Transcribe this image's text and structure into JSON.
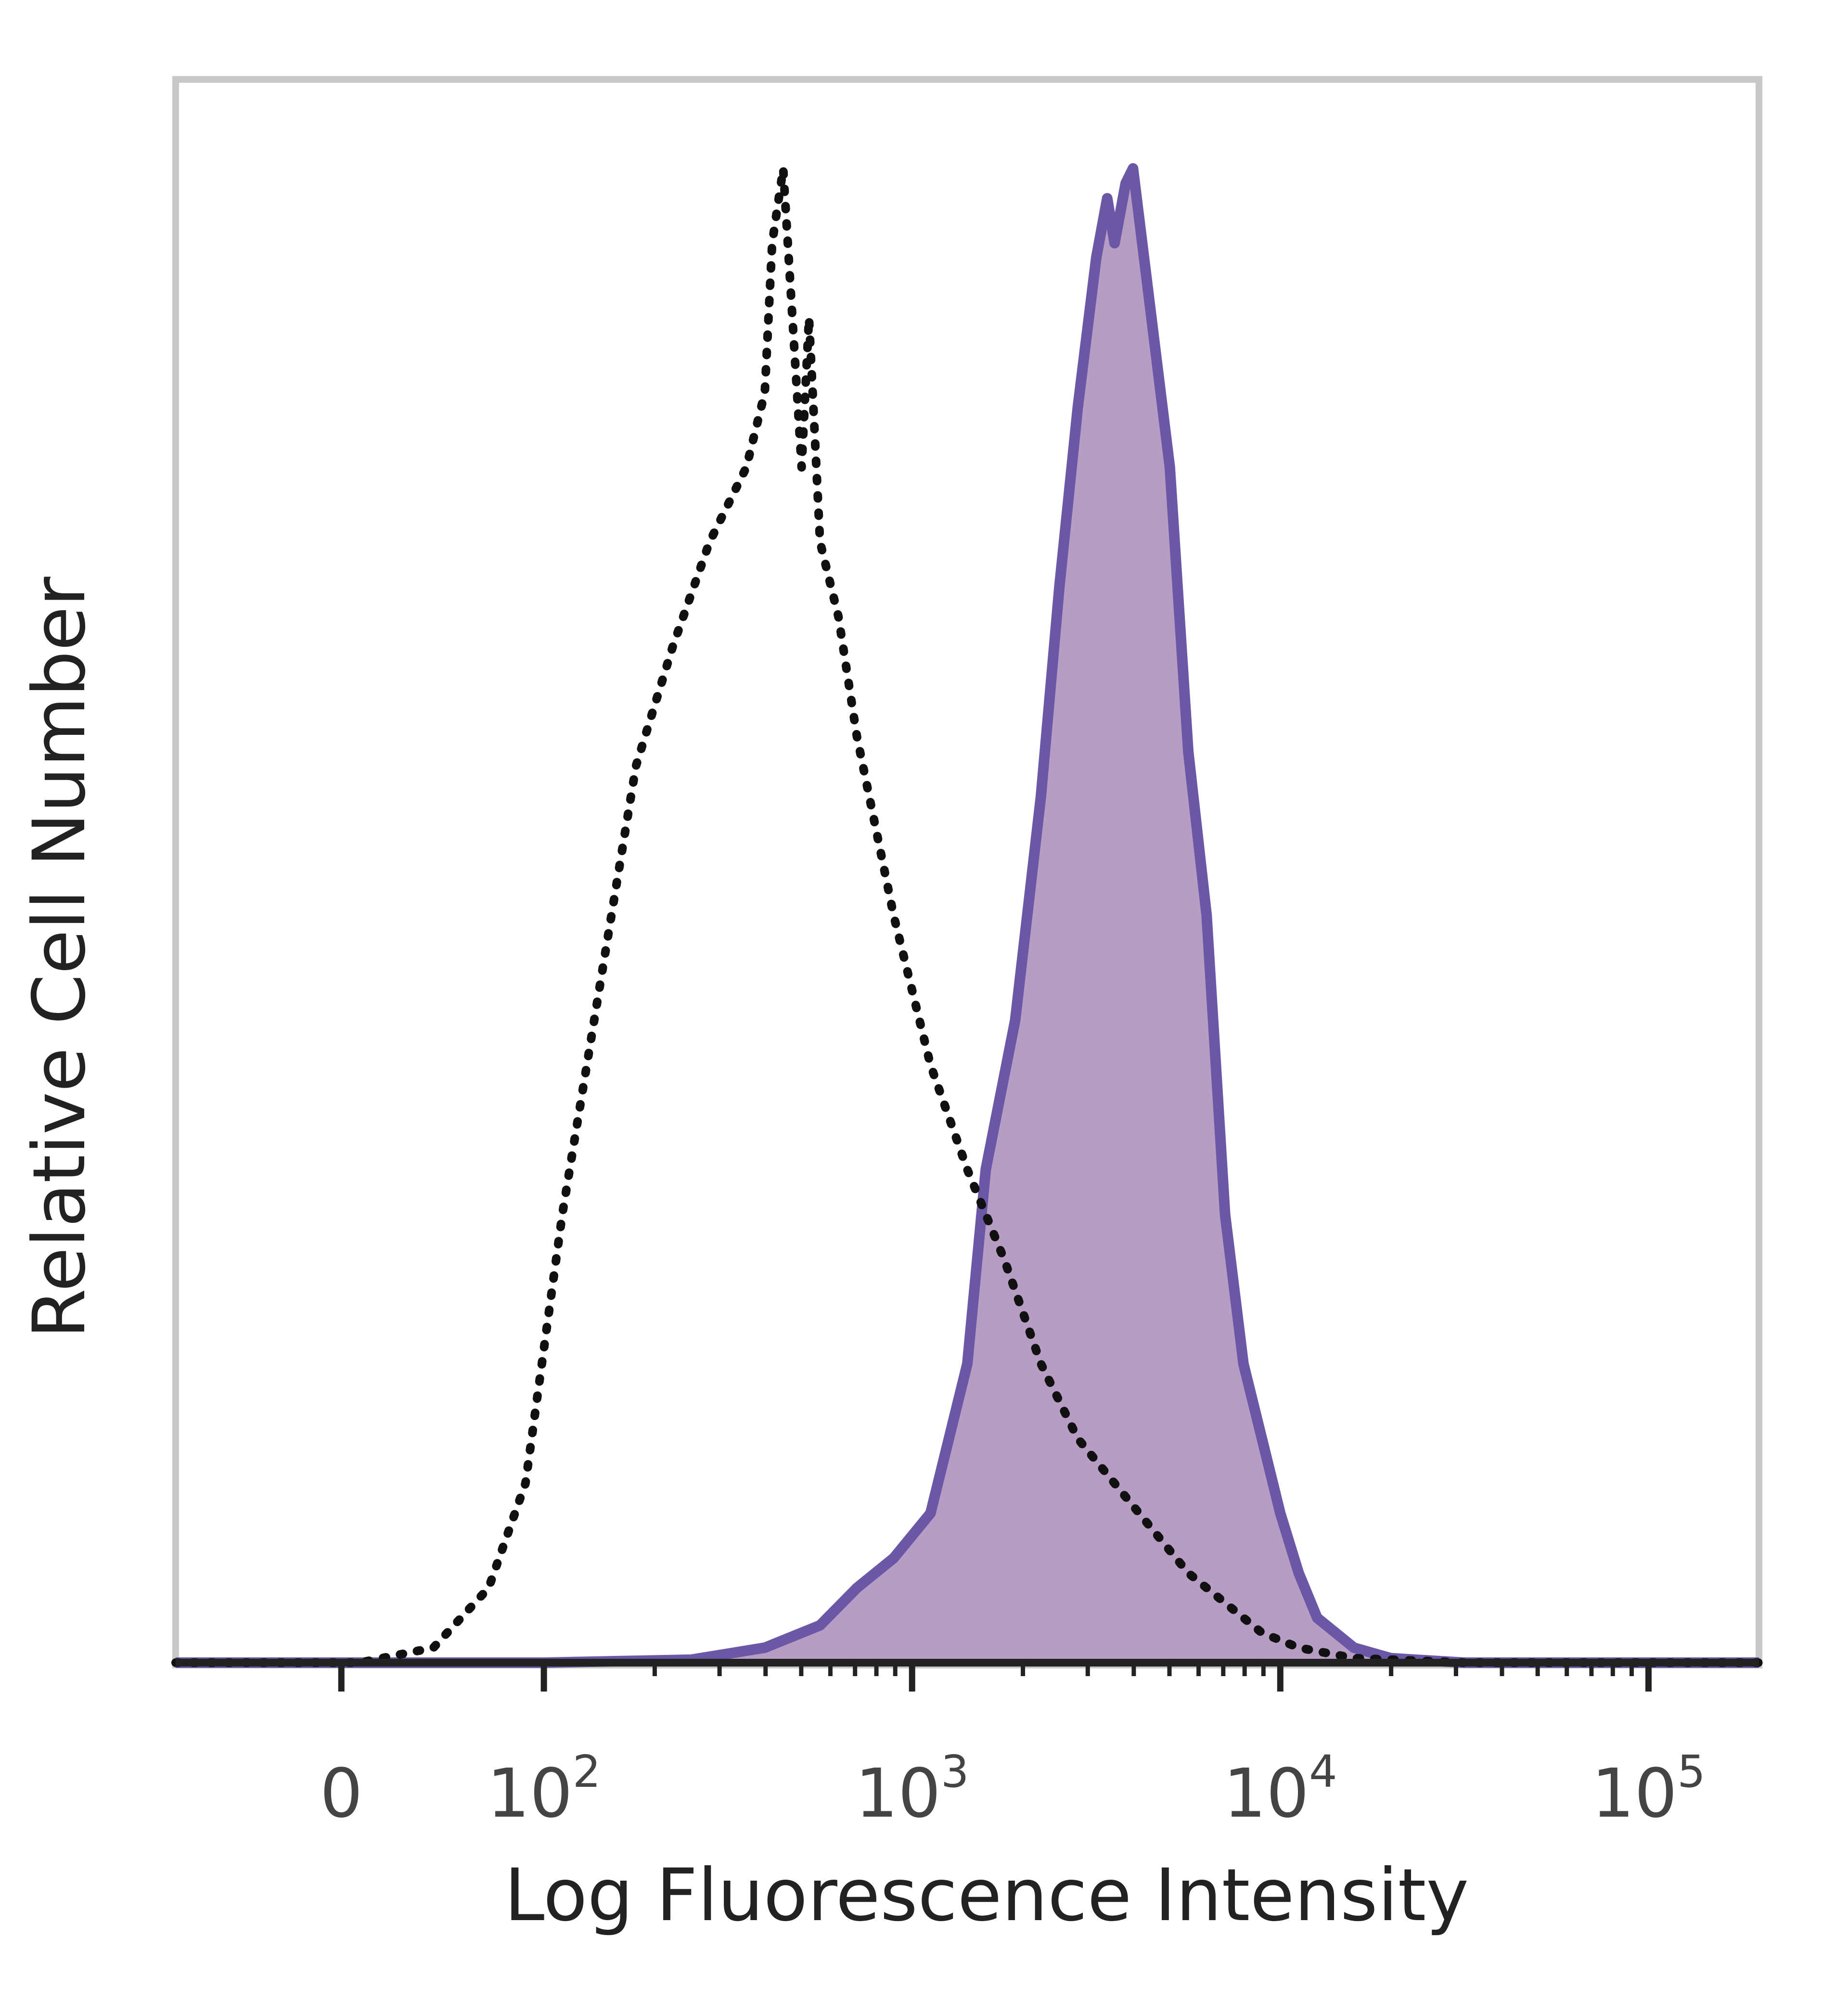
{
  "chart_data": {
    "type": "area",
    "title": "",
    "xlabel": "Log Fluorescence Intensity",
    "ylabel": "Relative Cell Number",
    "x_scale": "biexponential (log above 10^2)",
    "xlim_log10": [
      1.0,
      5.3
    ],
    "ylim": [
      0,
      1
    ],
    "grid": false,
    "legend": "none",
    "x_ticks": [
      {
        "base": "0",
        "exp": "",
        "log10": 1.45
      },
      {
        "base": "10",
        "exp": "2",
        "log10": 2
      },
      {
        "base": "10",
        "exp": "3",
        "log10": 3
      },
      {
        "base": "10",
        "exp": "4",
        "log10": 4
      },
      {
        "base": "10",
        "exp": "5",
        "log10": 5
      }
    ],
    "colors": {
      "stained_fill": "#b79dc4",
      "stained_line": "#6a58a6",
      "control_line": "#111111",
      "axis": "#222222",
      "frame": "#c8c8c8"
    },
    "series": [
      {
        "style": "filled solid",
        "x_log10": [
          1.0,
          1.6,
          2.0,
          2.4,
          2.6,
          2.75,
          2.85,
          2.95,
          3.05,
          3.15,
          3.2,
          3.28,
          3.35,
          3.4,
          3.45,
          3.5,
          3.53,
          3.55,
          3.58,
          3.6,
          3.65,
          3.7,
          3.75,
          3.8,
          3.85,
          3.9,
          3.95,
          4.0,
          4.05,
          4.1,
          4.2,
          4.3,
          4.5,
          5.3
        ],
        "values": [
          0,
          0,
          0,
          0.002,
          0.01,
          0.025,
          0.05,
          0.07,
          0.1,
          0.2,
          0.33,
          0.43,
          0.58,
          0.72,
          0.84,
          0.94,
          0.98,
          0.95,
          0.99,
          1.0,
          0.9,
          0.8,
          0.61,
          0.5,
          0.3,
          0.2,
          0.15,
          0.1,
          0.06,
          0.03,
          0.01,
          0.003,
          0,
          0
        ]
      },
      {
        "style": "dotted",
        "x_log10": [
          1.0,
          1.5,
          1.7,
          1.85,
          1.95,
          2.05,
          2.15,
          2.25,
          2.35,
          2.45,
          2.55,
          2.6,
          2.62,
          2.65,
          2.7,
          2.72,
          2.75,
          2.8,
          2.85,
          2.95,
          3.05,
          3.15,
          3.25,
          3.35,
          3.45,
          3.55,
          3.65,
          3.75,
          3.85,
          3.95,
          4.05,
          4.2,
          4.5,
          5.3
        ],
        "values": [
          0,
          0,
          0.01,
          0.05,
          0.12,
          0.3,
          0.45,
          0.6,
          0.68,
          0.75,
          0.8,
          0.85,
          0.95,
          1.0,
          0.8,
          0.9,
          0.75,
          0.7,
          0.62,
          0.5,
          0.4,
          0.33,
          0.27,
          0.2,
          0.15,
          0.12,
          0.09,
          0.06,
          0.04,
          0.02,
          0.01,
          0.003,
          0,
          0
        ]
      }
    ]
  }
}
